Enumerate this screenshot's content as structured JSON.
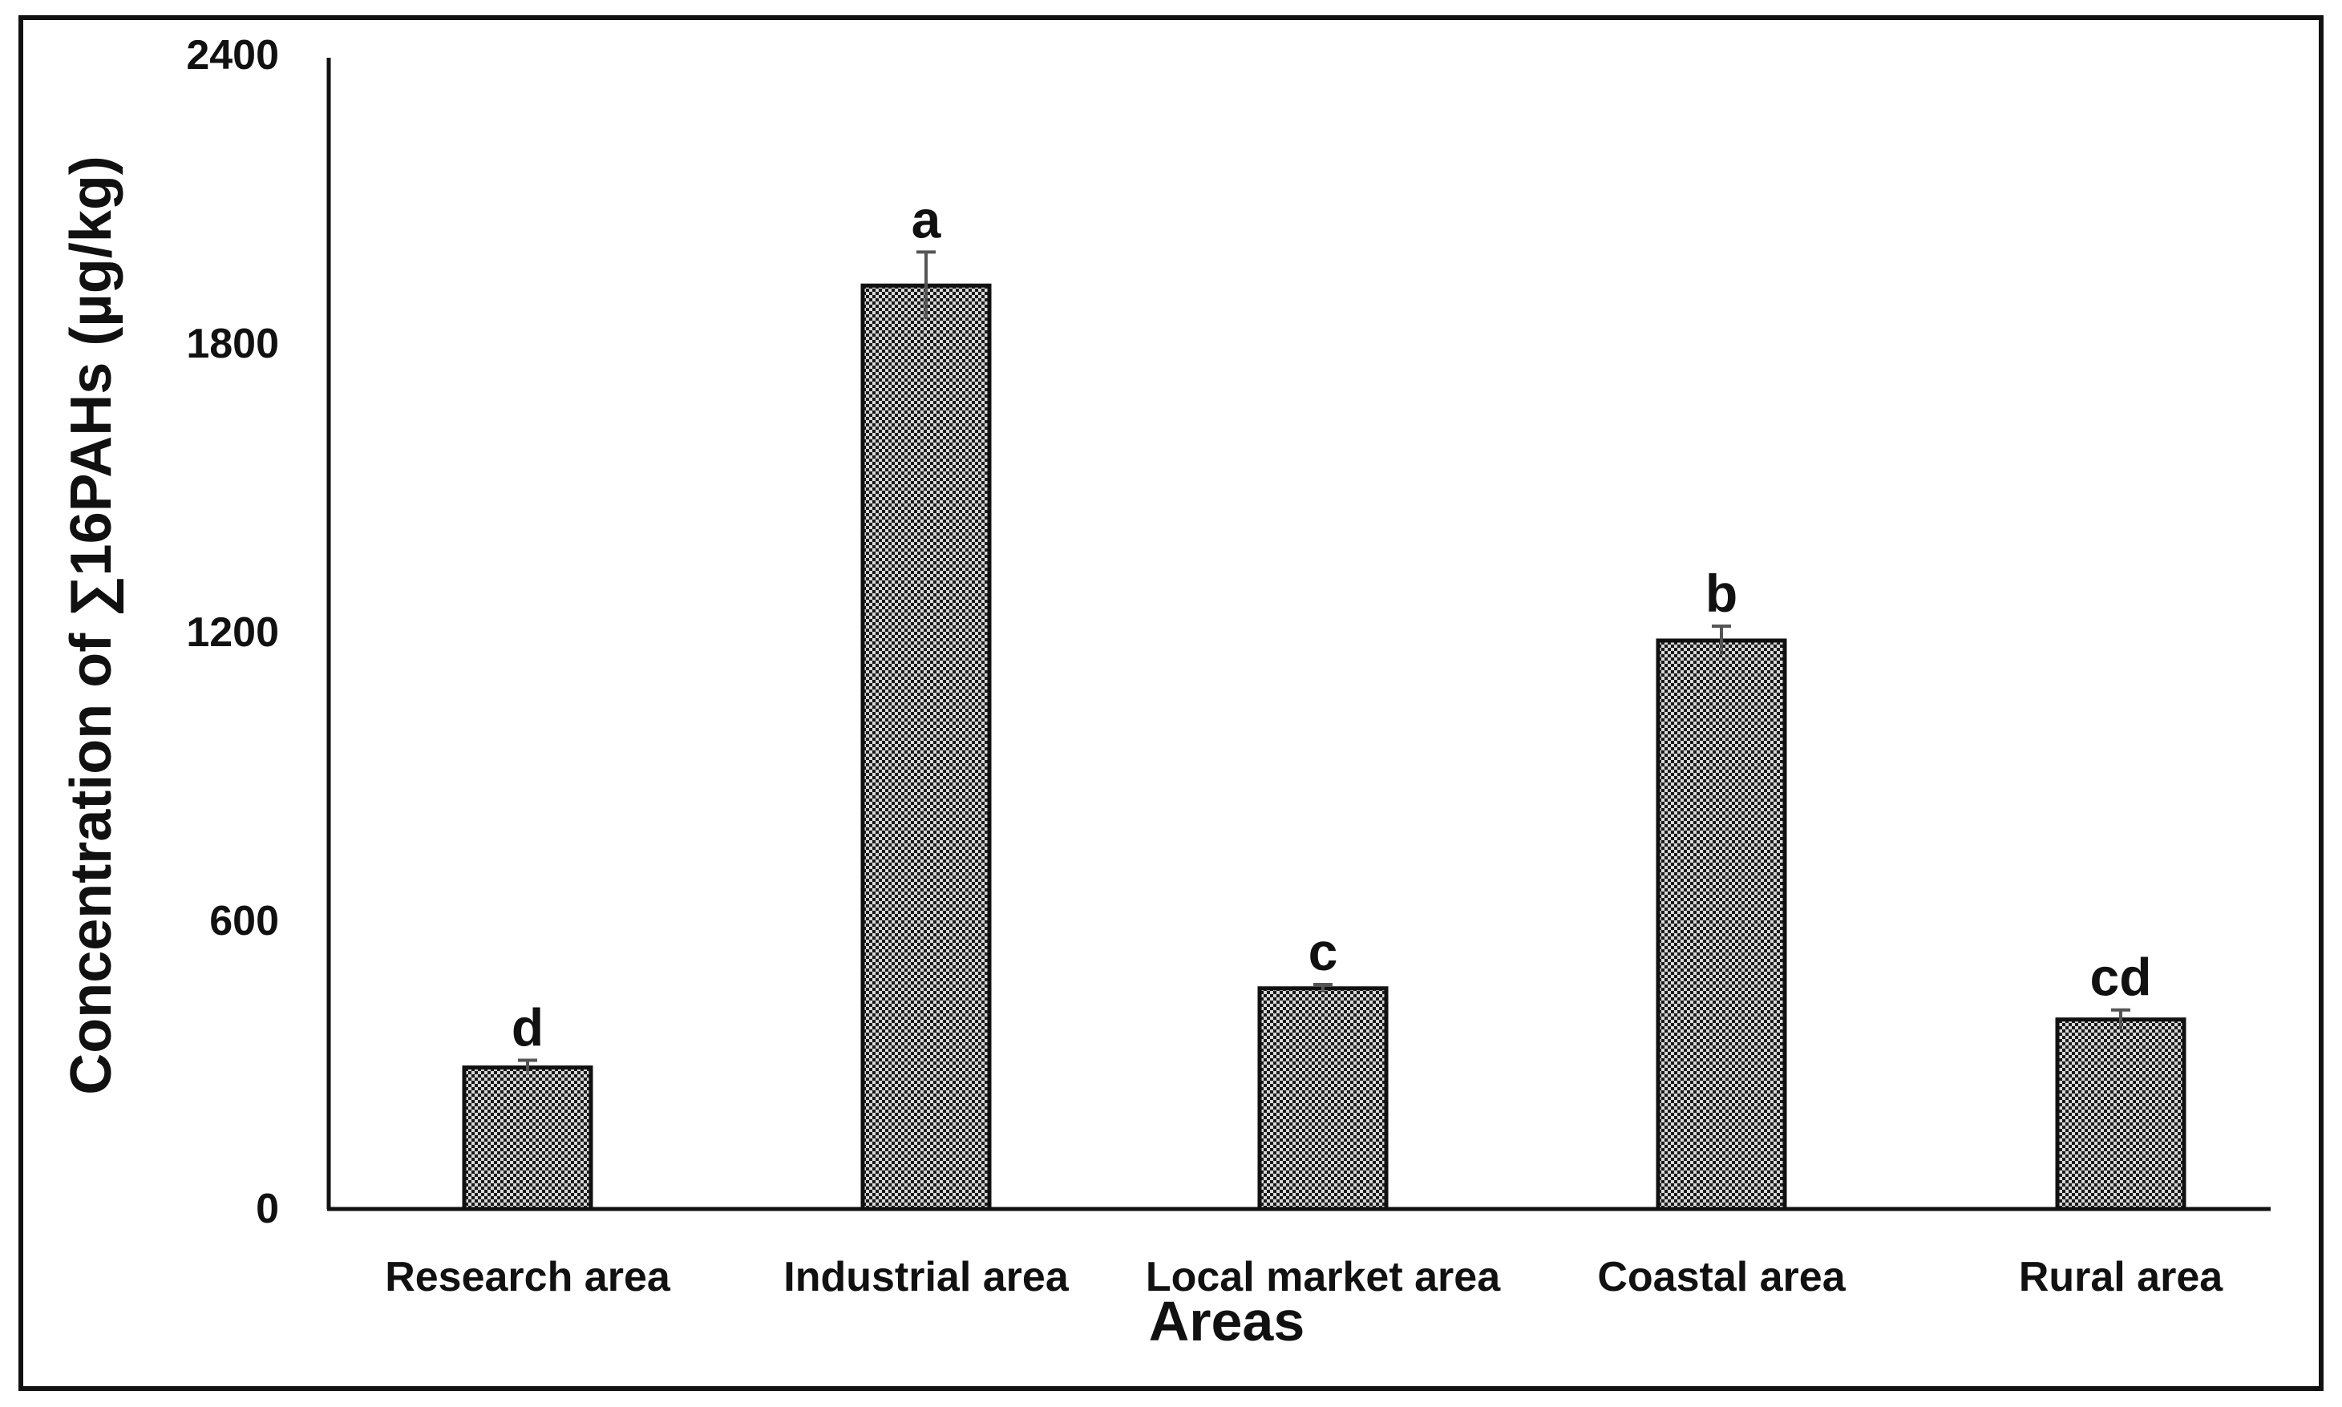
{
  "chart_data": {
    "type": "bar",
    "title": "",
    "xlabel": "Areas",
    "ylabel": "Concentration of ∑16PAHs (µg/kg)",
    "categories": [
      "Research area",
      "Industrial area",
      "Local market area",
      "Coastal area",
      "Rural area"
    ],
    "values": [
      295,
      1925,
      460,
      1185,
      395
    ],
    "errors": [
      15,
      70,
      8,
      30,
      20
    ],
    "significance_letters": [
      "d",
      "a",
      "c",
      "b",
      "cd"
    ],
    "ylim": [
      0,
      2400
    ],
    "yticks": [
      "0",
      "600",
      "1200",
      "1800",
      "2400"
    ],
    "grid": false,
    "legend": "none",
    "bar_fill": "crosshatch-dark-gray",
    "colors": {
      "bar_dark": "#1a1a1a",
      "bar_light": "#d8d8d8",
      "axis": "#111111",
      "error_bar": "#555555",
      "frame": "#111111"
    }
  }
}
